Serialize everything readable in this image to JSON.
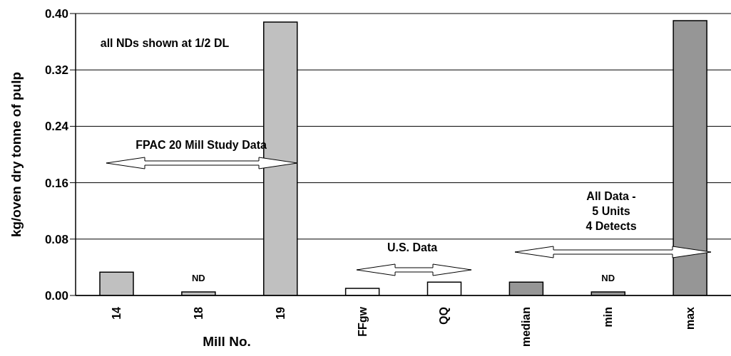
{
  "chart_data": {
    "type": "bar",
    "xlabel": "Mill No.",
    "ylabel": "kg/oven dry tonne of pulp",
    "categories": [
      "14",
      "18",
      "19",
      "FFgw",
      "QQ",
      "median",
      "min",
      "max"
    ],
    "values": [
      0.033,
      0.005,
      0.388,
      0.01,
      0.019,
      0.019,
      0.005,
      0.39
    ],
    "colors": [
      "#c0c0c0",
      "#c0c0c0",
      "#c0c0c0",
      "#ffffff",
      "#ffffff",
      "#969696",
      "#969696",
      "#969696"
    ],
    "ylim": [
      0,
      0.4
    ],
    "yticks": [
      {
        "value": 0,
        "label": "0.00"
      },
      {
        "value": 0.08,
        "label": "0.08"
      },
      {
        "value": 0.16,
        "label": "0.16"
      },
      {
        "value": 0.24,
        "label": "0.24"
      },
      {
        "value": 0.32,
        "label": "0.32"
      },
      {
        "value": 0.4,
        "label": "0.40"
      }
    ],
    "grid": "y",
    "legend": false,
    "annotations": [
      "all NDs shown at 1/2 DL",
      "FPAC 20 Mill Study Data",
      "U.S. Data",
      "All Data -\n5 Units\n4 Detects",
      {
        "text": "ND",
        "x": "18",
        "y": 0.005
      },
      {
        "text": "ND",
        "x": "min",
        "y": 0.005
      }
    ]
  }
}
